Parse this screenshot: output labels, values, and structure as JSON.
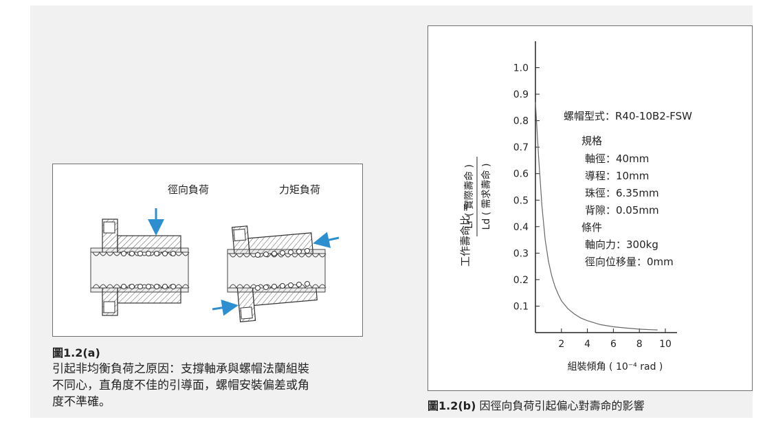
{
  "figure_a": {
    "label_radial": "徑向負荷",
    "label_moment": "力矩負荷",
    "caption_number": "圖1.2(a)",
    "caption_lines": [
      "引起非均衡負荷之原因：支撐軸承與螺帽法蘭組裝",
      "不同心，直角度不佳的引導面，螺帽安裝偏差或角",
      "度不準確。"
    ]
  },
  "figure_b": {
    "caption_number": "圖1.2(b)",
    "caption_text": " 因徑向負荷引起偏心對壽命的影響",
    "y_axis_title": "工作壽命比 =",
    "y_fraction_num": "Lr ( 實際壽命 )",
    "y_fraction_den": "Ld ( 需求壽命 )",
    "x_axis_title": "組裝傾角 ( 10⁻⁴ rad )",
    "spec": [
      "螺帽型式：R40-10B2-FSW",
      "規格",
      "軸徑：40mm",
      "導程：10mm",
      "珠徑：6.35mm",
      "背隙：0.05mm",
      "條件",
      "軸向力：300kg",
      "徑向位移量：0mm"
    ]
  },
  "chart_data": {
    "type": "line",
    "xlabel": "組裝傾角 ( 10⁻⁴ rad )",
    "ylabel": "工作壽命比 = Lr ( 實際壽命 ) / Ld ( 需求壽命 )",
    "x_ticks": [
      "2",
      "4",
      "6",
      "8",
      "10"
    ],
    "y_ticks": [
      "0.1",
      "0.2",
      "0.3",
      "0.4",
      "0.5",
      "0.6",
      "0.7",
      "0.8",
      "0.9",
      "1.0"
    ],
    "xlim": [
      0,
      11
    ],
    "ylim": [
      0,
      1.1
    ],
    "grid": false,
    "series": [
      {
        "x": [
          0,
          0.25,
          0.5,
          0.75,
          1.0,
          1.25,
          1.5,
          1.75,
          2.0,
          2.5,
          3.0,
          3.5,
          4.0,
          5.0,
          6.0,
          7.0,
          8.0,
          9.0,
          9.4
        ],
        "y": [
          0.87,
          0.66,
          0.48,
          0.35,
          0.27,
          0.215,
          0.175,
          0.145,
          0.12,
          0.09,
          0.07,
          0.055,
          0.045,
          0.03,
          0.022,
          0.017,
          0.013,
          0.011,
          0.01
        ]
      }
    ],
    "color": "#666666"
  }
}
